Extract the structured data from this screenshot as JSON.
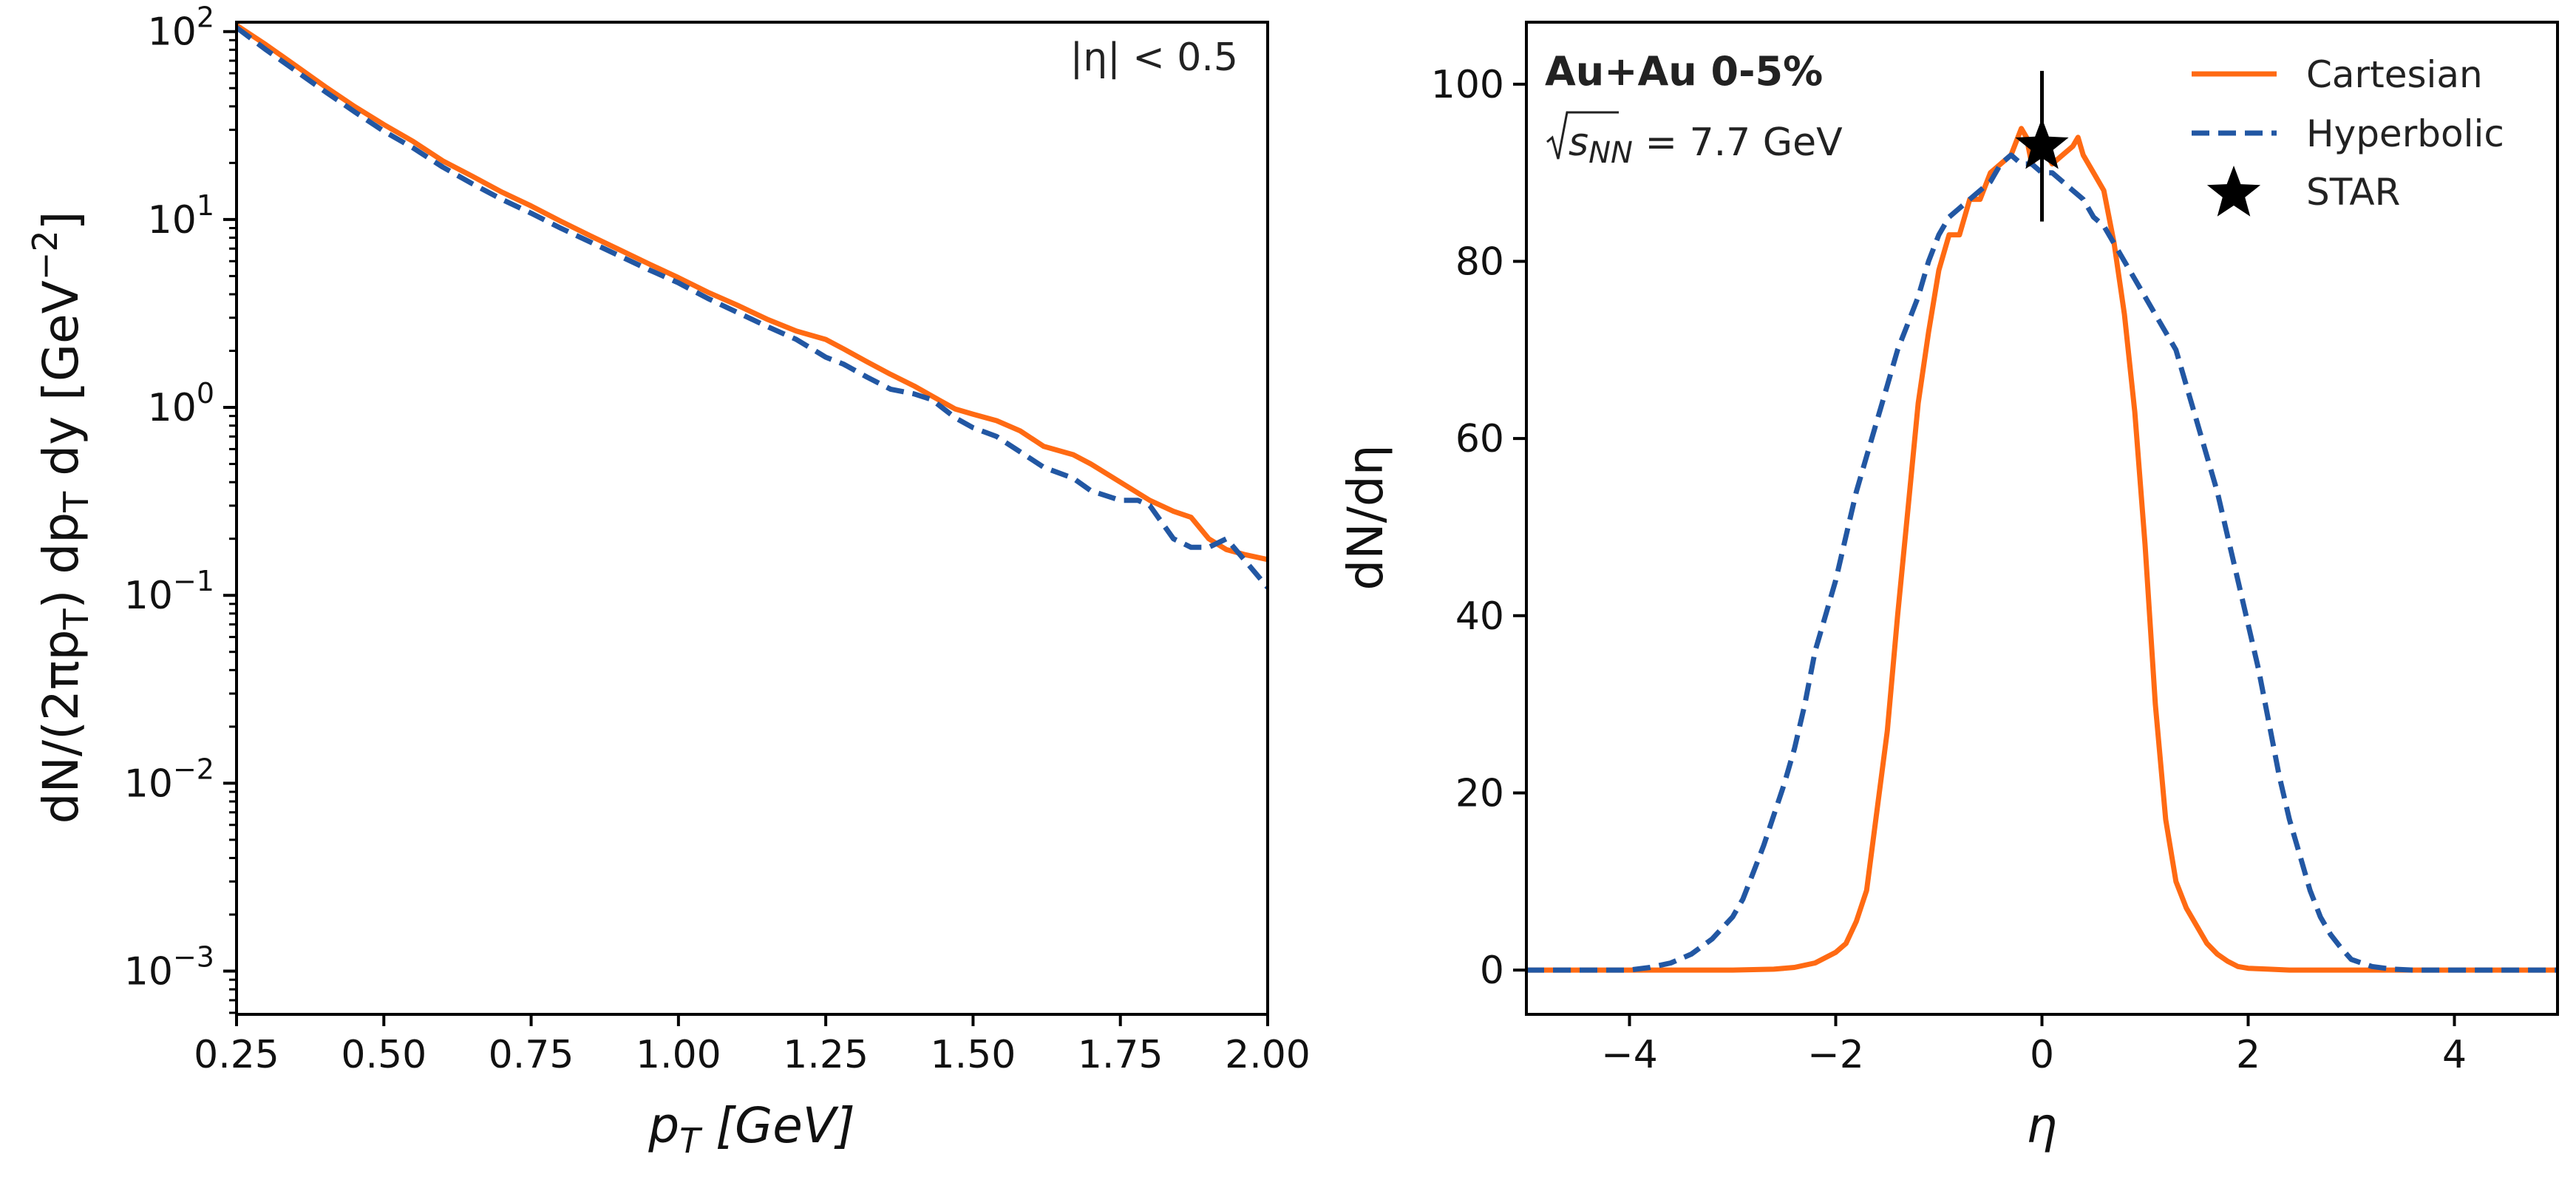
{
  "colors": {
    "cartesian": "#ff6a13",
    "hyperbolic": "#2257a3",
    "star": "#000000",
    "axis": "#000000"
  },
  "chart_data": [
    {
      "type": "line",
      "title": "",
      "xlabel_var": "p",
      "xlabel_sub": "T",
      "xlabel_unit": "[GeV]",
      "ylabel_pre": "dN/(2πp",
      "ylabel_sub1": "T",
      "ylabel_mid": ") dp",
      "ylabel_sub2": "T",
      "ylabel_end": "dy [GeV",
      "ylabel_exp": "−2",
      "ylabel_close": "]",
      "xlim": [
        0.25,
        2.0
      ],
      "ylim_log10": [
        -3.23,
        2.05
      ],
      "yscale": "log",
      "xticks": [
        {
          "value": 0.25,
          "label": "0.25"
        },
        {
          "value": 0.5,
          "label": "0.50"
        },
        {
          "value": 0.75,
          "label": "0.75"
        },
        {
          "value": 1.0,
          "label": "1.00"
        },
        {
          "value": 1.25,
          "label": "1.25"
        },
        {
          "value": 1.5,
          "label": "1.50"
        },
        {
          "value": 1.75,
          "label": "1.75"
        },
        {
          "value": 2.0,
          "label": "2.00"
        }
      ],
      "yticks": [
        {
          "exp": 2,
          "base": "10",
          "sup": "2"
        },
        {
          "exp": 1,
          "base": "10",
          "sup": "1"
        },
        {
          "exp": 0,
          "base": "10",
          "sup": "0"
        },
        {
          "exp": -1,
          "base": "10",
          "sup": "−1"
        },
        {
          "exp": -2,
          "base": "10",
          "sup": "−2"
        },
        {
          "exp": -3,
          "base": "10",
          "sup": "−3"
        }
      ],
      "annotation": "|η| < 0.5",
      "series": [
        {
          "name": "Cartesian",
          "style": "solid",
          "x": [
            0.25,
            0.3,
            0.35,
            0.4,
            0.45,
            0.5,
            0.55,
            0.6,
            0.65,
            0.7,
            0.75,
            0.8,
            0.85,
            0.9,
            0.95,
            1.0,
            1.05,
            1.1,
            1.15,
            1.2,
            1.25,
            1.28,
            1.32,
            1.36,
            1.4,
            1.43,
            1.47,
            1.5,
            1.54,
            1.58,
            1.62,
            1.67,
            1.7,
            1.75,
            1.8,
            1.84,
            1.87,
            1.9,
            1.93,
            1.96,
            2.0
          ],
          "y": [
            108,
            85,
            66,
            51,
            40,
            32,
            26,
            20.5,
            17,
            14,
            11.8,
            9.8,
            8.2,
            6.9,
            5.8,
            4.9,
            4.1,
            3.5,
            2.95,
            2.55,
            2.3,
            2.05,
            1.75,
            1.5,
            1.3,
            1.15,
            0.98,
            0.92,
            0.85,
            0.75,
            0.62,
            0.56,
            0.5,
            0.4,
            0.32,
            0.28,
            0.26,
            0.2,
            0.175,
            0.165,
            0.155
          ]
        },
        {
          "name": "Hyperbolic",
          "style": "dashed",
          "x": [
            0.25,
            0.3,
            0.35,
            0.4,
            0.45,
            0.5,
            0.55,
            0.6,
            0.65,
            0.7,
            0.75,
            0.8,
            0.85,
            0.9,
            0.95,
            1.0,
            1.05,
            1.1,
            1.15,
            1.2,
            1.25,
            1.28,
            1.32,
            1.36,
            1.4,
            1.43,
            1.47,
            1.5,
            1.54,
            1.58,
            1.62,
            1.67,
            1.7,
            1.75,
            1.78,
            1.8,
            1.84,
            1.87,
            1.9,
            1.93,
            1.96,
            2.0
          ],
          "y": [
            105,
            80,
            62,
            48,
            37.5,
            29.5,
            24,
            19,
            15.5,
            12.8,
            10.8,
            9,
            7.6,
            6.4,
            5.4,
            4.6,
            3.8,
            3.2,
            2.7,
            2.3,
            1.85,
            1.7,
            1.45,
            1.25,
            1.18,
            1.1,
            0.88,
            0.78,
            0.7,
            0.58,
            0.48,
            0.42,
            0.36,
            0.32,
            0.32,
            0.3,
            0.2,
            0.18,
            0.18,
            0.2,
            0.155,
            0.11
          ]
        }
      ]
    },
    {
      "type": "line",
      "title": "",
      "xlabel": "η",
      "ylabel": "dN/dη",
      "xlim": [
        -5,
        5
      ],
      "ylim": [
        -5,
        107
      ],
      "xticks": [
        {
          "value": -4,
          "label": "−4"
        },
        {
          "value": -2,
          "label": "−2"
        },
        {
          "value": 0,
          "label": "0"
        },
        {
          "value": 2,
          "label": "2"
        },
        {
          "value": 4,
          "label": "4"
        }
      ],
      "yticks": [
        {
          "value": 0,
          "label": "0"
        },
        {
          "value": 20,
          "label": "20"
        },
        {
          "value": 40,
          "label": "40"
        },
        {
          "value": 60,
          "label": "60"
        },
        {
          "value": 80,
          "label": "80"
        },
        {
          "value": 100,
          "label": "100"
        }
      ],
      "annotation_title": "Au+Au 0-5%",
      "annotation_energy_sym": "s",
      "annotation_energy_sub": "NN",
      "annotation_energy_val": " = 7.7 GeV",
      "legend_position": "top-right",
      "series": [
        {
          "name": "Cartesian",
          "style": "solid",
          "x": [
            -5,
            -3.0,
            -2.6,
            -2.4,
            -2.2,
            -2.0,
            -1.9,
            -1.8,
            -1.7,
            -1.6,
            -1.5,
            -1.4,
            -1.3,
            -1.2,
            -1.1,
            -1.0,
            -0.9,
            -0.8,
            -0.7,
            -0.6,
            -0.5,
            -0.4,
            -0.3,
            -0.2,
            -0.15,
            -0.1,
            -0.05,
            0.0,
            0.05,
            0.1,
            0.2,
            0.3,
            0.35,
            0.4,
            0.5,
            0.6,
            0.7,
            0.8,
            0.9,
            1.0,
            1.1,
            1.2,
            1.3,
            1.4,
            1.5,
            1.6,
            1.7,
            1.8,
            1.9,
            2.0,
            2.2,
            2.4,
            2.6,
            3.0,
            5
          ],
          "y": [
            0,
            0,
            0.1,
            0.3,
            0.8,
            2.0,
            3.0,
            5.5,
            9.0,
            18,
            27,
            40,
            52,
            64,
            72,
            79,
            83,
            83,
            87,
            87,
            90,
            91,
            92,
            95,
            94,
            91,
            92,
            93,
            92,
            91,
            92,
            93,
            94,
            92,
            90,
            88,
            82,
            74,
            63,
            48,
            30,
            17,
            10,
            7,
            5,
            3,
            1.8,
            1.0,
            0.4,
            0.2,
            0.1,
            0,
            0,
            0,
            0
          ]
        },
        {
          "name": "Hyperbolic",
          "style": "dashed",
          "x": [
            -5,
            -4.0,
            -3.8,
            -3.6,
            -3.4,
            -3.2,
            -3.0,
            -2.9,
            -2.8,
            -2.7,
            -2.6,
            -2.5,
            -2.4,
            -2.3,
            -2.2,
            -2.1,
            -2.0,
            -1.9,
            -1.8,
            -1.7,
            -1.6,
            -1.5,
            -1.4,
            -1.3,
            -1.2,
            -1.1,
            -1.0,
            -0.9,
            -0.8,
            -0.7,
            -0.6,
            -0.5,
            -0.4,
            -0.3,
            -0.2,
            -0.1,
            0.0,
            0.1,
            0.2,
            0.3,
            0.4,
            0.5,
            0.6,
            0.7,
            0.8,
            0.9,
            1.0,
            1.1,
            1.2,
            1.3,
            1.4,
            1.5,
            1.6,
            1.7,
            1.8,
            1.9,
            2.0,
            2.1,
            2.2,
            2.3,
            2.4,
            2.5,
            2.6,
            2.7,
            2.8,
            2.9,
            3.0,
            3.2,
            3.4,
            3.6,
            3.8,
            4.0,
            5
          ],
          "y": [
            0,
            0,
            0.3,
            0.8,
            1.8,
            3.5,
            6,
            8,
            11,
            14,
            17.5,
            21,
            25,
            30,
            36,
            40,
            44,
            49,
            54,
            58,
            62,
            66,
            70,
            73,
            76,
            80,
            83,
            85,
            86,
            87,
            88,
            89,
            91,
            92,
            91,
            91,
            90,
            90,
            89,
            88,
            87,
            85,
            84,
            82,
            80,
            78,
            76,
            74,
            72,
            70,
            66,
            62,
            58,
            54,
            49,
            44,
            39,
            34,
            28,
            22,
            17,
            13,
            9,
            6,
            4,
            2.5,
            1.2,
            0.4,
            0.1,
            0,
            0,
            0,
            0
          ]
        },
        {
          "name": "STAR",
          "style": "marker-star",
          "x": [
            0.0
          ],
          "y": [
            93
          ],
          "yerr": [
            8.5
          ]
        }
      ]
    }
  ]
}
